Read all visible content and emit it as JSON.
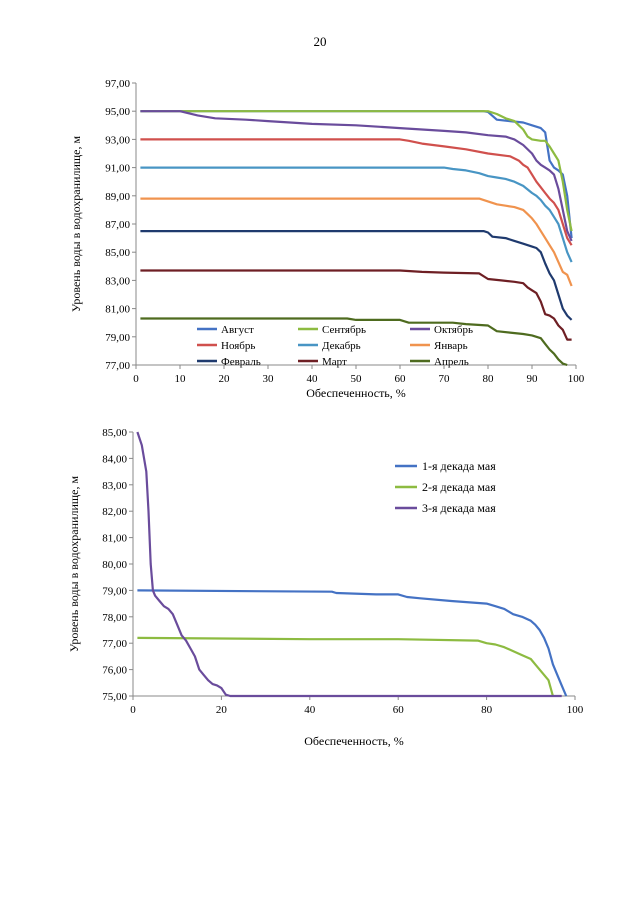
{
  "page": {
    "number": "20"
  },
  "chart_data": [
    {
      "type": "line",
      "xlabel": "Обеспеченность, %",
      "ylabel": "Уровень воды в водохранилище, м",
      "xlim": [
        0,
        100
      ],
      "ylim": [
        77,
        97
      ],
      "xticks": [
        "0",
        "10",
        "20",
        "30",
        "40",
        "50",
        "60",
        "70",
        "80",
        "90",
        "100"
      ],
      "yticks": [
        "77,00",
        "79,00",
        "81,00",
        "83,00",
        "85,00",
        "87,00",
        "89,00",
        "91,00",
        "93,00",
        "95,00",
        "97,00"
      ],
      "legend_position": "bottom-inside",
      "series": [
        {
          "name": "Август",
          "color": "#4472C4",
          "points": [
            [
              1,
              95
            ],
            [
              79,
              95
            ],
            [
              80,
              94.95
            ],
            [
              82,
              94.4
            ],
            [
              85,
              94.3
            ],
            [
              88,
              94.2
            ],
            [
              90,
              94
            ],
            [
              92,
              93.8
            ],
            [
              93,
              93.5
            ],
            [
              94,
              91.5
            ],
            [
              95,
              91
            ],
            [
              96,
              90.8
            ],
            [
              97,
              90.5
            ],
            [
              98,
              89
            ],
            [
              99,
              86
            ]
          ]
        },
        {
          "name": "Сентябрь",
          "color": "#8DBB41",
          "points": [
            [
              1,
              95
            ],
            [
              80,
              95
            ],
            [
              82,
              94.8
            ],
            [
              84,
              94.5
            ],
            [
              86,
              94.3
            ],
            [
              87,
              94
            ],
            [
              88,
              93.7
            ],
            [
              89,
              93.2
            ],
            [
              90,
              93
            ],
            [
              92,
              92.9
            ],
            [
              93,
              92.9
            ],
            [
              94,
              92.5
            ],
            [
              95,
              92
            ],
            [
              96,
              91.5
            ],
            [
              97,
              90
            ],
            [
              98,
              88
            ],
            [
              99,
              86.5
            ]
          ]
        },
        {
          "name": "Октябрь",
          "color": "#6A4C9C",
          "points": [
            [
              1,
              95
            ],
            [
              10,
              95
            ],
            [
              14,
              94.7
            ],
            [
              18,
              94.5
            ],
            [
              25,
              94.4
            ],
            [
              30,
              94.3
            ],
            [
              35,
              94.2
            ],
            [
              40,
              94.1
            ],
            [
              50,
              94
            ],
            [
              55,
              93.9
            ],
            [
              60,
              93.8
            ],
            [
              65,
              93.7
            ],
            [
              70,
              93.6
            ],
            [
              75,
              93.5
            ],
            [
              80,
              93.3
            ],
            [
              84,
              93.2
            ],
            [
              86,
              93
            ],
            [
              88,
              92.6
            ],
            [
              90,
              92
            ],
            [
              91,
              91.5
            ],
            [
              92,
              91.2
            ],
            [
              93,
              91
            ],
            [
              94,
              90.8
            ],
            [
              95,
              90.5
            ],
            [
              96,
              89.5
            ],
            [
              97,
              88
            ],
            [
              98,
              86.5
            ],
            [
              99,
              85.8
            ]
          ]
        },
        {
          "name": "Ноябрь",
          "color": "#D0504D",
          "points": [
            [
              1,
              93
            ],
            [
              60,
              93
            ],
            [
              62,
              92.9
            ],
            [
              65,
              92.7
            ],
            [
              70,
              92.5
            ],
            [
              75,
              92.3
            ],
            [
              80,
              92
            ],
            [
              85,
              91.8
            ],
            [
              87,
              91.5
            ],
            [
              88,
              91.2
            ],
            [
              89,
              91
            ],
            [
              90,
              90.5
            ],
            [
              91,
              90
            ],
            [
              92,
              89.6
            ],
            [
              93,
              89.2
            ],
            [
              94,
              88.8
            ],
            [
              95,
              88.5
            ],
            [
              96,
              88
            ],
            [
              97,
              87
            ],
            [
              98,
              86
            ],
            [
              99,
              85.5
            ]
          ]
        },
        {
          "name": "Декабрь",
          "color": "#4895C4",
          "points": [
            [
              1,
              91
            ],
            [
              70,
              91
            ],
            [
              72,
              90.9
            ],
            [
              75,
              90.8
            ],
            [
              78,
              90.6
            ],
            [
              80,
              90.4
            ],
            [
              82,
              90.3
            ],
            [
              84,
              90.2
            ],
            [
              86,
              90
            ],
            [
              88,
              89.7
            ],
            [
              90,
              89.2
            ],
            [
              91,
              89
            ],
            [
              92,
              88.7
            ],
            [
              93,
              88.3
            ],
            [
              94,
              88
            ],
            [
              95,
              87.5
            ],
            [
              96,
              87
            ],
            [
              97,
              86
            ],
            [
              98,
              85
            ],
            [
              99,
              84.3
            ]
          ]
        },
        {
          "name": "Январь",
          "color": "#F0934E",
          "points": [
            [
              1,
              88.8
            ],
            [
              78,
              88.8
            ],
            [
              80,
              88.6
            ],
            [
              82,
              88.4
            ],
            [
              84,
              88.3
            ],
            [
              86,
              88.2
            ],
            [
              88,
              88
            ],
            [
              89,
              87.7
            ],
            [
              90,
              87.4
            ],
            [
              91,
              87
            ],
            [
              92,
              86.5
            ],
            [
              93,
              86
            ],
            [
              94,
              85.5
            ],
            [
              95,
              85
            ],
            [
              96,
              84.3
            ],
            [
              97,
              83.6
            ],
            [
              98,
              83.4
            ],
            [
              99,
              82.6
            ]
          ]
        },
        {
          "name": "Февраль",
          "color": "#1F3A6E",
          "points": [
            [
              1,
              86.5
            ],
            [
              79,
              86.5
            ],
            [
              80,
              86.4
            ],
            [
              81,
              86.1
            ],
            [
              84,
              86
            ],
            [
              86,
              85.8
            ],
            [
              88,
              85.6
            ],
            [
              90,
              85.4
            ],
            [
              91,
              85.3
            ],
            [
              92,
              85
            ],
            [
              93,
              84.2
            ],
            [
              94,
              83.5
            ],
            [
              95,
              83
            ],
            [
              96,
              82
            ],
            [
              97,
              81
            ],
            [
              98,
              80.5
            ],
            [
              99,
              80.2
            ]
          ]
        },
        {
          "name": "Март",
          "color": "#6E1F24",
          "points": [
            [
              1,
              83.7
            ],
            [
              60,
              83.7
            ],
            [
              65,
              83.6
            ],
            [
              70,
              83.55
            ],
            [
              78,
              83.5
            ],
            [
              80,
              83.1
            ],
            [
              83,
              83
            ],
            [
              86,
              82.9
            ],
            [
              88,
              82.8
            ],
            [
              89,
              82.5
            ],
            [
              90,
              82.3
            ],
            [
              91,
              82.1
            ],
            [
              92,
              81.5
            ],
            [
              93,
              80.6
            ],
            [
              94,
              80.5
            ],
            [
              95,
              80.3
            ],
            [
              96,
              79.8
            ],
            [
              97,
              79.5
            ],
            [
              98,
              78.8
            ],
            [
              99,
              78.8
            ]
          ]
        },
        {
          "name": "Апрель",
          "color": "#4E6B1F",
          "points": [
            [
              1,
              80.3
            ],
            [
              48,
              80.3
            ],
            [
              50,
              80.2
            ],
            [
              60,
              80.2
            ],
            [
              62,
              80
            ],
            [
              72,
              80
            ],
            [
              75,
              79.9
            ],
            [
              80,
              79.8
            ],
            [
              82,
              79.4
            ],
            [
              85,
              79.3
            ],
            [
              88,
              79.2
            ],
            [
              90,
              79.1
            ],
            [
              92,
              78.9
            ],
            [
              93,
              78.5
            ],
            [
              94,
              78.1
            ],
            [
              95,
              77.8
            ],
            [
              96,
              77.4
            ],
            [
              97,
              77.1
            ],
            [
              98,
              77
            ]
          ]
        }
      ]
    },
    {
      "type": "line",
      "xlabel": "Обеспеченность, %",
      "ylabel": "Уровень воды в водохранилище, м",
      "xlim": [
        0,
        100
      ],
      "ylim": [
        75,
        85
      ],
      "xticks": [
        "0",
        "20",
        "40",
        "60",
        "80",
        "100"
      ],
      "yticks": [
        "75,00",
        "76,00",
        "77,00",
        "78,00",
        "79,00",
        "80,00",
        "81,00",
        "82,00",
        "83,00",
        "84,00",
        "85,00"
      ],
      "legend_position": "top-right",
      "series": [
        {
          "name": "1-я декада мая",
          "color": "#4472C4",
          "points": [
            [
              1,
              79
            ],
            [
              45,
              78.95
            ],
            [
              46,
              78.9
            ],
            [
              55,
              78.85
            ],
            [
              60,
              78.85
            ],
            [
              62,
              78.75
            ],
            [
              65,
              78.7
            ],
            [
              72,
              78.6
            ],
            [
              80,
              78.5
            ],
            [
              82,
              78.4
            ],
            [
              84,
              78.3
            ],
            [
              86,
              78.1
            ],
            [
              88,
              78
            ],
            [
              90,
              77.85
            ],
            [
              91,
              77.7
            ],
            [
              92,
              77.5
            ],
            [
              93,
              77.2
            ],
            [
              94,
              76.8
            ],
            [
              95,
              76.2
            ],
            [
              96,
              75.8
            ],
            [
              97,
              75.4
            ],
            [
              98,
              75
            ]
          ]
        },
        {
          "name": "2-я декада мая",
          "color": "#8DBB41",
          "points": [
            [
              1,
              77.2
            ],
            [
              40,
              77.15
            ],
            [
              60,
              77.15
            ],
            [
              78,
              77.1
            ],
            [
              80,
              77
            ],
            [
              82,
              76.95
            ],
            [
              84,
              76.85
            ],
            [
              86,
              76.7
            ],
            [
              88,
              76.55
            ],
            [
              90,
              76.4
            ],
            [
              91,
              76.2
            ],
            [
              92,
              76
            ],
            [
              93,
              75.8
            ],
            [
              94,
              75.6
            ],
            [
              95,
              75
            ]
          ]
        },
        {
          "name": "3-я декада мая",
          "color": "#6A4C9C",
          "points": [
            [
              1,
              85
            ],
            [
              2,
              84.5
            ],
            [
              3,
              83.5
            ],
            [
              3.5,
              82
            ],
            [
              4,
              80
            ],
            [
              4.5,
              79
            ],
            [
              5,
              78.8
            ],
            [
              6,
              78.6
            ],
            [
              7,
              78.4
            ],
            [
              8,
              78.3
            ],
            [
              9,
              78.1
            ],
            [
              10,
              77.7
            ],
            [
              11,
              77.3
            ],
            [
              12,
              77.1
            ],
            [
              13,
              76.8
            ],
            [
              14,
              76.5
            ],
            [
              15,
              76
            ],
            [
              16,
              75.8
            ],
            [
              17,
              75.6
            ],
            [
              18,
              75.45
            ],
            [
              19,
              75.4
            ],
            [
              20,
              75.3
            ],
            [
              21,
              75.05
            ],
            [
              22,
              75
            ],
            [
              40,
              75
            ],
            [
              60,
              75
            ],
            [
              80,
              75
            ],
            [
              97,
              75
            ]
          ]
        }
      ]
    }
  ]
}
